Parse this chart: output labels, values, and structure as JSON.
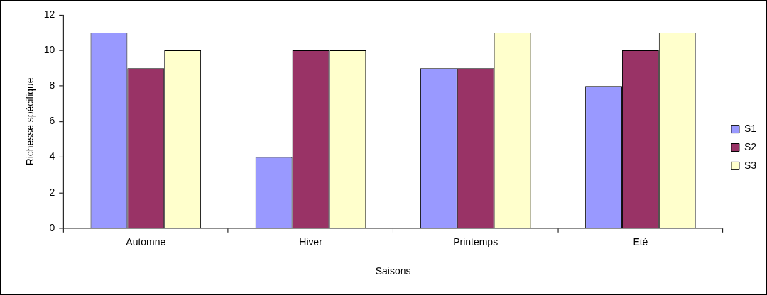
{
  "chart_data": {
    "type": "bar",
    "xlabel": "Saisons",
    "ylabel": "Richesse spécifique",
    "categories": [
      "Automne",
      "Hiver",
      "Printemps",
      "Eté"
    ],
    "series": [
      {
        "name": "S1",
        "color": "#9999ff",
        "values": [
          11,
          4,
          9,
          8
        ]
      },
      {
        "name": "S2",
        "color": "#993366",
        "values": [
          9,
          10,
          9,
          10
        ]
      },
      {
        "name": "S3",
        "color": "#ffffcc",
        "values": [
          10,
          10,
          11,
          11
        ]
      }
    ],
    "ylim": [
      0,
      12
    ],
    "yticks": [
      0,
      2,
      4,
      6,
      8,
      10,
      12
    ],
    "grid": false,
    "legend": "right"
  }
}
